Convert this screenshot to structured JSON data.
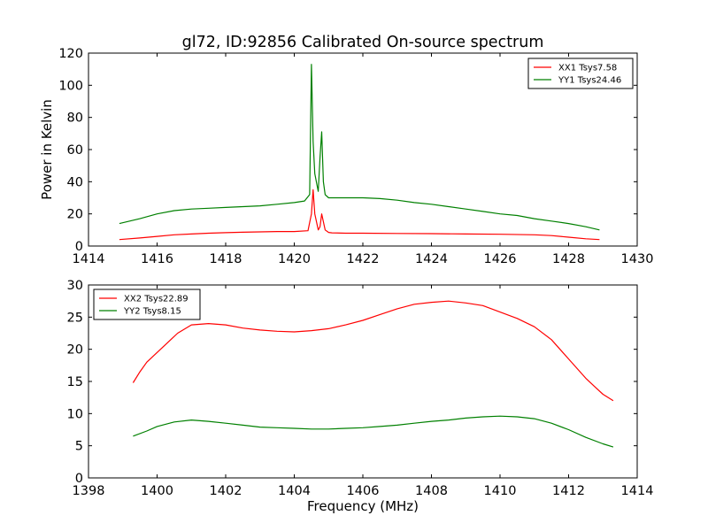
{
  "title": "gl72, ID:92856 Calibrated On-source spectrum",
  "chart_data": [
    {
      "type": "line",
      "title": "gl72, ID:92856 Calibrated On-source spectrum",
      "xlabel": "",
      "ylabel": "Power in Kelvin",
      "xlim": [
        1414,
        1430
      ],
      "ylim": [
        0,
        120
      ],
      "xticks": [
        "1414",
        "1416",
        "1418",
        "1420",
        "1422",
        "1424",
        "1426",
        "1428",
        "1430"
      ],
      "yticks": [
        "0",
        "20",
        "40",
        "60",
        "80",
        "100",
        "120"
      ],
      "grid": false,
      "legend_position": "top-right",
      "series": [
        {
          "name": "XX1 Tsys7.58",
          "color": "#ff0000",
          "x": [
            1414.9,
            1415.5,
            1416.0,
            1416.5,
            1417.0,
            1417.5,
            1418.0,
            1418.5,
            1419.0,
            1419.5,
            1420.0,
            1420.4,
            1420.5,
            1420.55,
            1420.6,
            1420.7,
            1420.75,
            1420.8,
            1420.9,
            1421.0,
            1421.1,
            1421.5,
            1422.0,
            1423.0,
            1424.0,
            1425.0,
            1426.0,
            1427.0,
            1427.5,
            1428.0,
            1428.5,
            1428.9
          ],
          "y": [
            4,
            5,
            6,
            7,
            7.5,
            8,
            8.3,
            8.6,
            8.8,
            9,
            9,
            9.5,
            20,
            35,
            20,
            10,
            12,
            20,
            10,
            8.5,
            8.2,
            8,
            8,
            7.8,
            7.7,
            7.5,
            7.3,
            7,
            6.5,
            5.5,
            4.5,
            4
          ]
        },
        {
          "name": "YY1 Tsys24.46",
          "color": "#008000",
          "x": [
            1414.9,
            1415.5,
            1416.0,
            1416.5,
            1417.0,
            1417.5,
            1418.0,
            1418.5,
            1419.0,
            1419.5,
            1420.0,
            1420.3,
            1420.45,
            1420.5,
            1420.55,
            1420.6,
            1420.7,
            1420.75,
            1420.8,
            1420.85,
            1420.9,
            1421.0,
            1421.1,
            1421.5,
            1422.0,
            1422.5,
            1423.0,
            1423.5,
            1424.0,
            1424.5,
            1425.0,
            1425.5,
            1426.0,
            1426.5,
            1427.0,
            1427.5,
            1428.0,
            1428.5,
            1428.9
          ],
          "y": [
            14,
            17,
            20,
            22,
            23,
            23.5,
            24,
            24.5,
            25,
            26,
            27,
            28,
            32,
            113,
            65,
            45,
            34,
            55,
            71,
            40,
            32,
            30,
            30,
            30,
            30,
            29.5,
            28.5,
            27,
            26,
            24.5,
            23,
            21.5,
            20,
            19,
            17,
            15.5,
            14,
            12,
            10
          ]
        }
      ]
    },
    {
      "type": "line",
      "title": "",
      "xlabel": "Frequency (MHz)",
      "ylabel": "",
      "xlim": [
        1398,
        1414
      ],
      "ylim": [
        0,
        30
      ],
      "xticks": [
        "1398",
        "1400",
        "1402",
        "1404",
        "1406",
        "1408",
        "1410",
        "1412",
        "1414"
      ],
      "yticks": [
        "0",
        "5",
        "10",
        "15",
        "20",
        "25",
        "30"
      ],
      "grid": false,
      "legend_position": "top-left",
      "series": [
        {
          "name": "XX2 Tsys22.89",
          "color": "#ff0000",
          "x": [
            1399.3,
            1399.5,
            1399.7,
            1400.0,
            1400.3,
            1400.6,
            1401.0,
            1401.5,
            1402.0,
            1402.5,
            1403.0,
            1403.5,
            1404.0,
            1404.5,
            1405.0,
            1405.5,
            1406.0,
            1406.5,
            1407.0,
            1407.5,
            1408.0,
            1408.5,
            1409.0,
            1409.5,
            1410.0,
            1410.5,
            1411.0,
            1411.5,
            1412.0,
            1412.5,
            1412.8,
            1413.0,
            1413.3
          ],
          "y": [
            14.8,
            16.5,
            18,
            19.5,
            21,
            22.5,
            23.8,
            24,
            23.8,
            23.3,
            23,
            22.8,
            22.7,
            22.9,
            23.2,
            23.8,
            24.5,
            25.4,
            26.3,
            27,
            27.3,
            27.5,
            27.2,
            26.8,
            25.8,
            24.8,
            23.5,
            21.5,
            18.5,
            15.5,
            14,
            13,
            12
          ]
        },
        {
          "name": "YY2 Tsys8.15",
          "color": "#008000",
          "x": [
            1399.3,
            1399.7,
            1400.0,
            1400.5,
            1401.0,
            1401.5,
            1402.0,
            1402.5,
            1403.0,
            1403.5,
            1404.0,
            1404.5,
            1405.0,
            1405.5,
            1406.0,
            1406.5,
            1407.0,
            1407.5,
            1408.0,
            1408.5,
            1409.0,
            1409.5,
            1410.0,
            1410.5,
            1411.0,
            1411.5,
            1412.0,
            1412.5,
            1413.0,
            1413.3
          ],
          "y": [
            6.5,
            7.3,
            8,
            8.7,
            9,
            8.8,
            8.5,
            8.2,
            7.9,
            7.8,
            7.7,
            7.6,
            7.6,
            7.7,
            7.8,
            8,
            8.2,
            8.5,
            8.8,
            9,
            9.3,
            9.5,
            9.6,
            9.5,
            9.2,
            8.5,
            7.5,
            6.3,
            5.3,
            4.8
          ]
        }
      ]
    }
  ]
}
